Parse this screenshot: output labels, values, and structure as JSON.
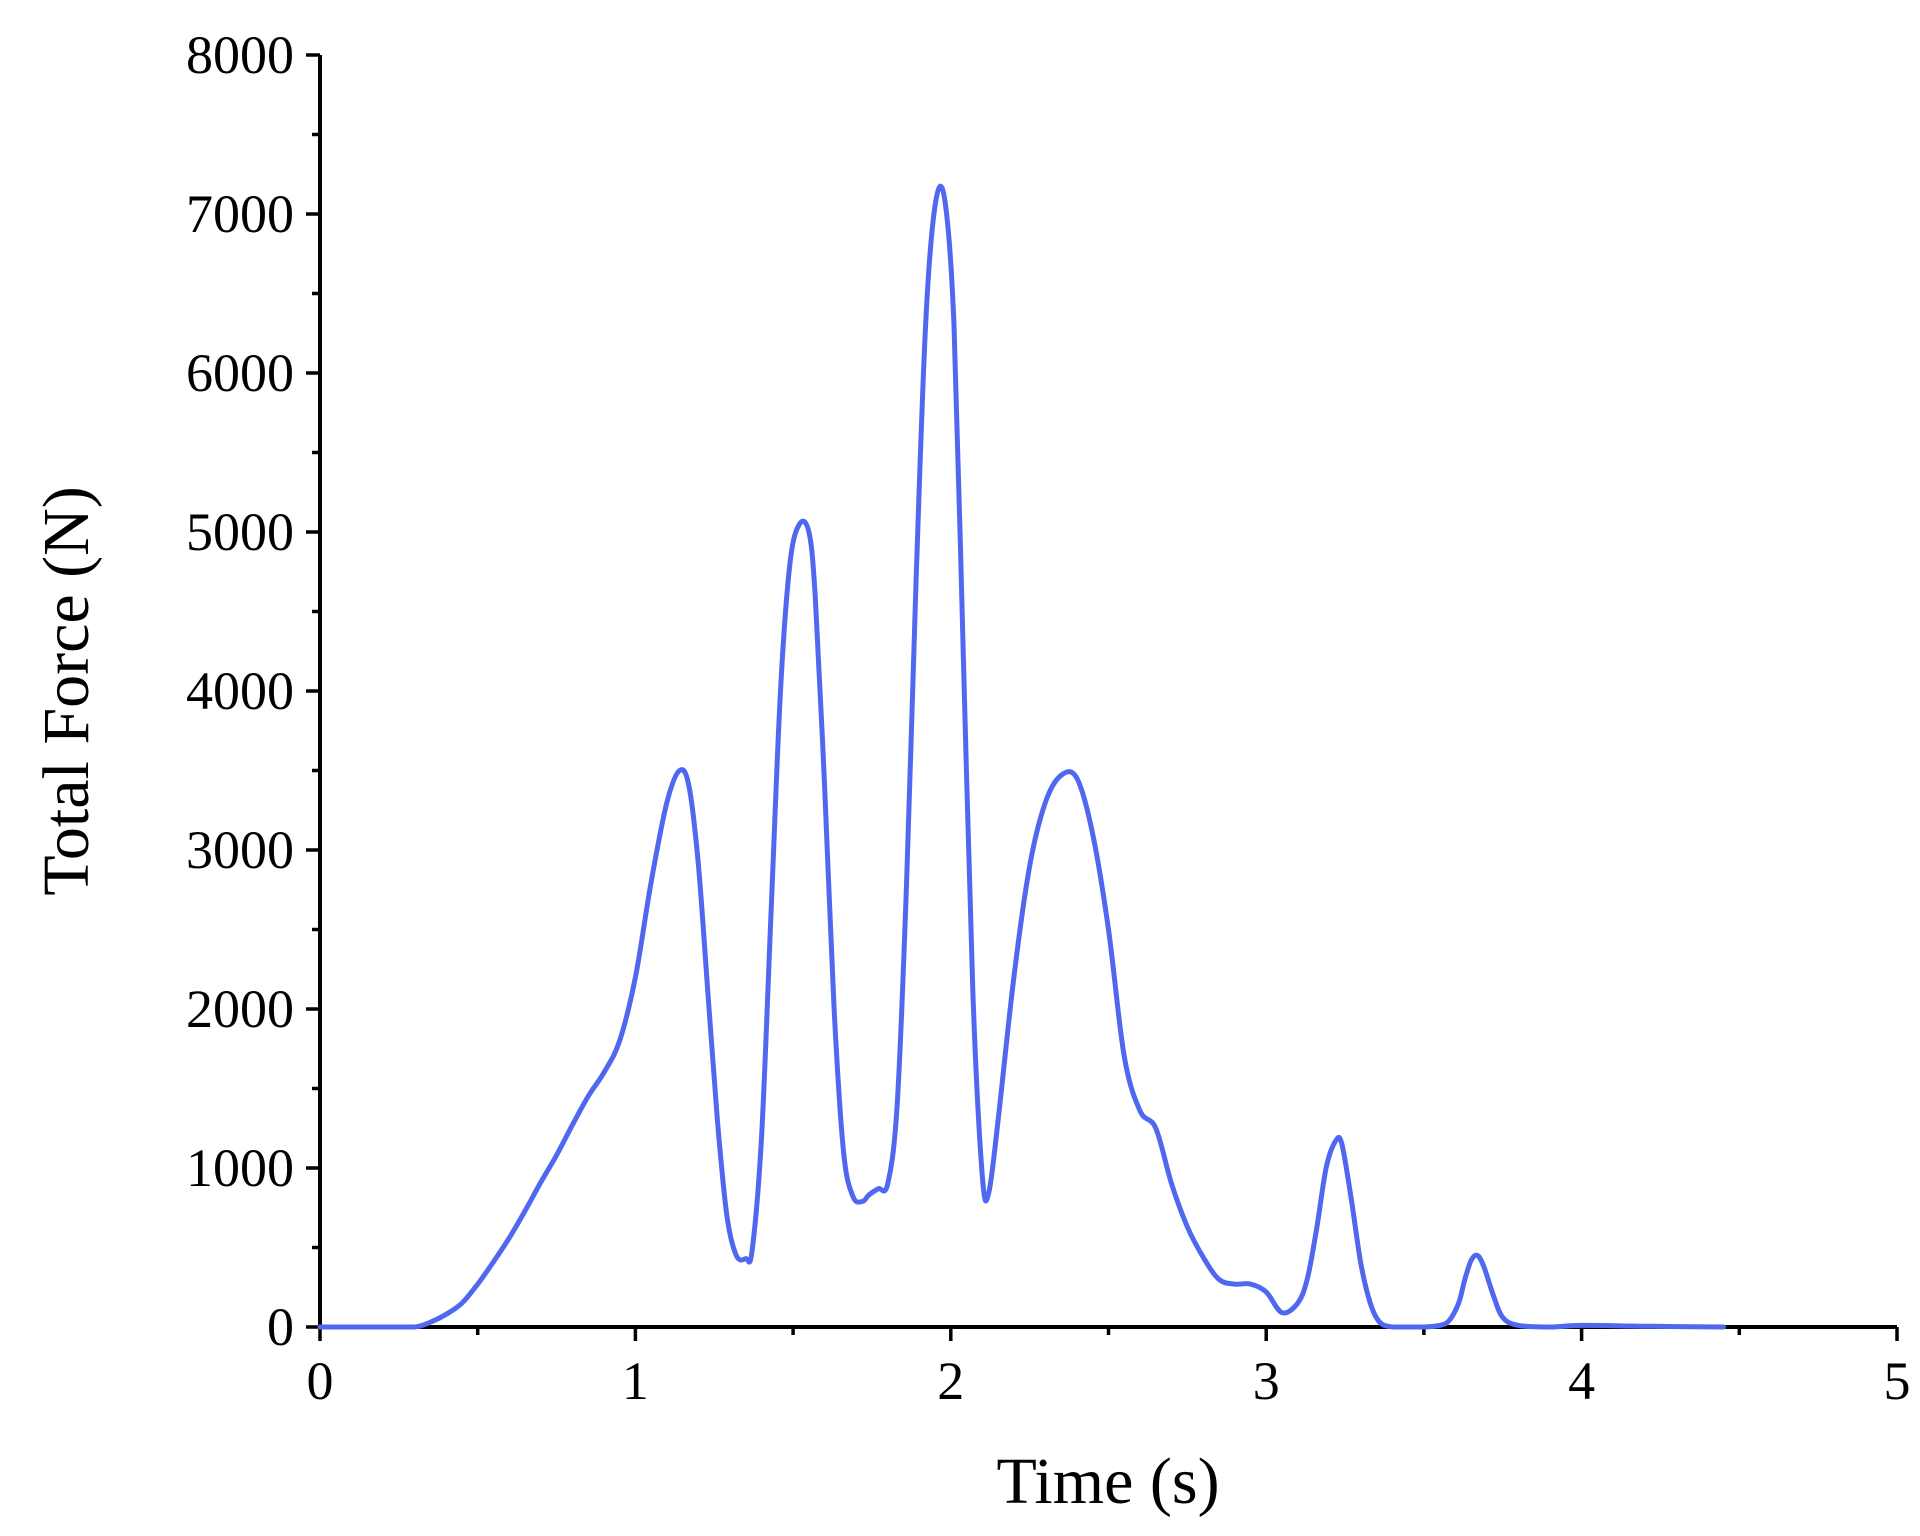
{
  "chart_data": {
    "type": "line",
    "title": "",
    "xlabel": "Time (s)",
    "ylabel": "Total Force (N)",
    "xlim": [
      0,
      5
    ],
    "ylim": [
      0,
      8000
    ],
    "x_ticks": [
      "0",
      "1",
      "2",
      "3",
      "4",
      "5"
    ],
    "y_ticks": [
      "0",
      "1000",
      "2000",
      "3000",
      "4000",
      "5000",
      "6000",
      "7000",
      "8000"
    ],
    "grid": false,
    "legend": "none",
    "line_color": "#5068F0",
    "series": [
      {
        "x": [
          0,
          0.1,
          0.2,
          0.3,
          0.35,
          0.4,
          0.45,
          0.5,
          0.55,
          0.6,
          0.65,
          0.7,
          0.75,
          0.8,
          0.85,
          0.9,
          0.95,
          1.0,
          1.05,
          1.1,
          1.14,
          1.17,
          1.2,
          1.23,
          1.26,
          1.29,
          1.32,
          1.35,
          1.37,
          1.4,
          1.43,
          1.46,
          1.49,
          1.52,
          1.55,
          1.57,
          1.6,
          1.63,
          1.66,
          1.69,
          1.72,
          1.74,
          1.77,
          1.8,
          1.83,
          1.86,
          1.89,
          1.92,
          1.95,
          1.98,
          2.01,
          2.04,
          2.07,
          2.1,
          2.12,
          2.15,
          2.2,
          2.25,
          2.3,
          2.35,
          2.4,
          2.45,
          2.5,
          2.55,
          2.6,
          2.65,
          2.7,
          2.75,
          2.8,
          2.85,
          2.9,
          2.95,
          3.0,
          3.05,
          3.1,
          3.13,
          3.16,
          3.19,
          3.22,
          3.24,
          3.27,
          3.3,
          3.33,
          3.36,
          3.4,
          3.45,
          3.5,
          3.55,
          3.58,
          3.61,
          3.63,
          3.65,
          3.67,
          3.69,
          3.72,
          3.75,
          3.8,
          3.9,
          4.0,
          4.2,
          4.45
        ],
        "y": [
          0,
          0,
          0,
          0,
          30,
          80,
          150,
          270,
          410,
          560,
          730,
          910,
          1080,
          1270,
          1450,
          1600,
          1800,
          2200,
          2800,
          3300,
          3500,
          3400,
          2900,
          2100,
          1300,
          700,
          450,
          430,
          480,
          1200,
          2600,
          4000,
          4800,
          5050,
          5000,
          4600,
          3400,
          2000,
          1100,
          820,
          790,
          830,
          870,
          900,
          1400,
          2800,
          4700,
          6300,
          7050,
          7100,
          6300,
          4200,
          2100,
          950,
          840,
          1300,
          2200,
          2900,
          3300,
          3470,
          3450,
          3100,
          2500,
          1700,
          1360,
          1250,
          900,
          630,
          440,
          300,
          270,
          270,
          220,
          90,
          150,
          300,
          620,
          1000,
          1170,
          1150,
          800,
          400,
          150,
          30,
          0,
          0,
          0,
          10,
          40,
          150,
          300,
          420,
          450,
          380,
          200,
          60,
          10,
          0,
          10,
          5,
          0
        ]
      }
    ]
  }
}
